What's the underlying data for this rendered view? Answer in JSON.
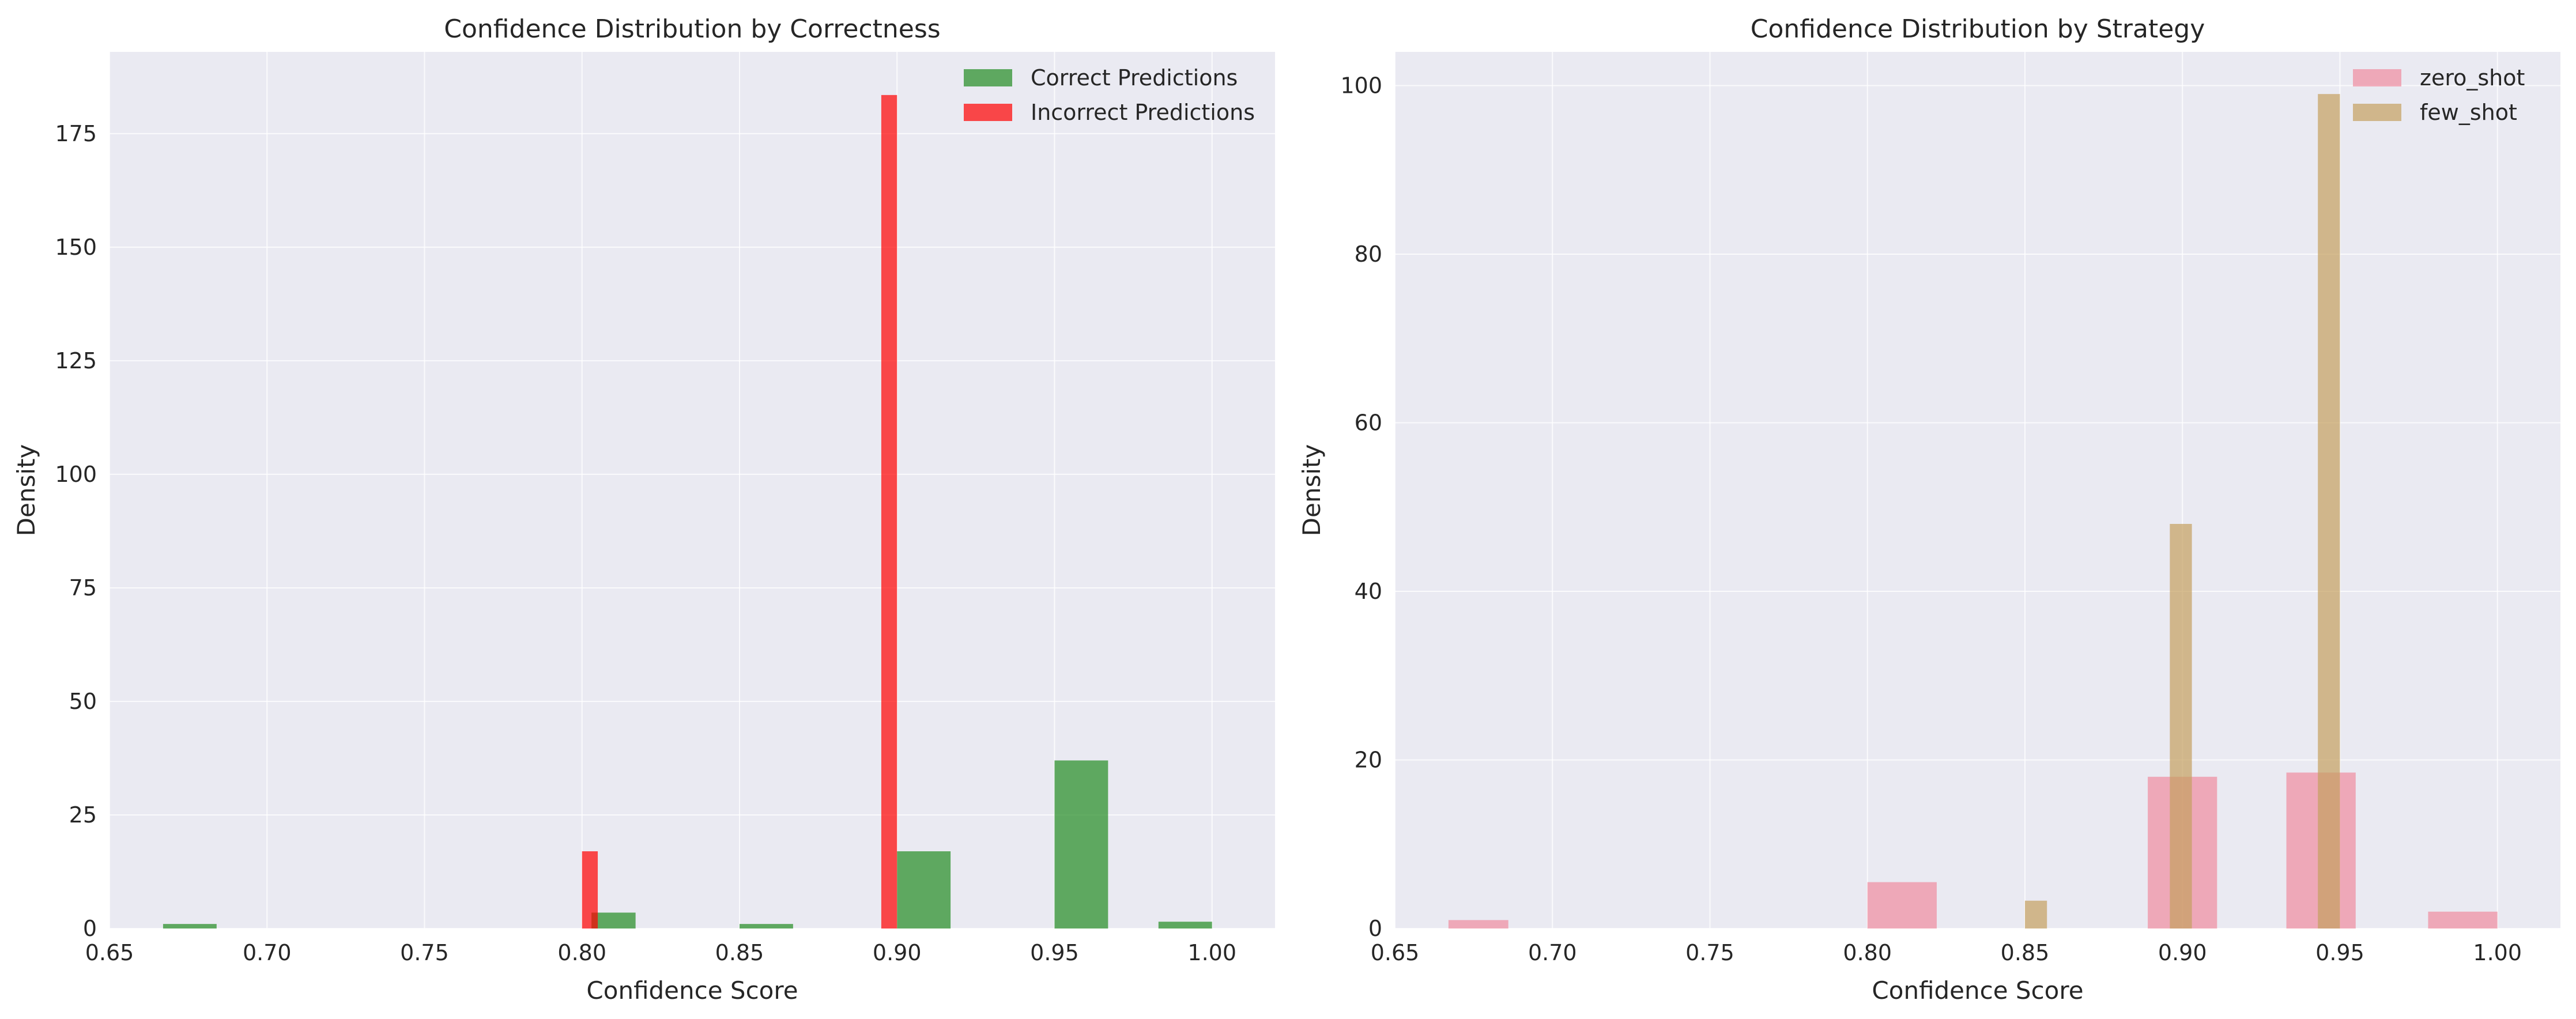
{
  "chart_data": [
    {
      "type": "bar",
      "title": "Confidence Distribution by Correctness",
      "xlabel": "Confidence Score",
      "ylabel": "Density",
      "xlim": [
        0.65,
        1.02
      ],
      "ylim": [
        0,
        193
      ],
      "xticks": [
        "0.65",
        "0.70",
        "0.75",
        "0.80",
        "0.85",
        "0.90",
        "0.95",
        "1.00"
      ],
      "yticks": [
        "0",
        "25",
        "50",
        "75",
        "100",
        "125",
        "150",
        "175"
      ],
      "grid": true,
      "legend_position": "top-right",
      "series": [
        {
          "name": "Correct Predictions",
          "color": "#228b22",
          "bins": [
            {
              "x0": 0.667,
              "x1": 0.684,
              "y": 1.0
            },
            {
              "x0": 0.803,
              "x1": 0.817,
              "y": 3.5
            },
            {
              "x0": 0.85,
              "x1": 0.867,
              "y": 1.0
            },
            {
              "x0": 0.9,
              "x1": 0.917,
              "y": 17.0
            },
            {
              "x0": 0.95,
              "x1": 0.967,
              "y": 37.0
            },
            {
              "x0": 0.983,
              "x1": 1.0,
              "y": 1.5
            }
          ]
        },
        {
          "name": "Incorrect Predictions",
          "color": "#ff0000",
          "bins": [
            {
              "x0": 0.8,
              "x1": 0.805,
              "y": 17.0
            },
            {
              "x0": 0.895,
              "x1": 0.9,
              "y": 183.5
            }
          ]
        }
      ]
    },
    {
      "type": "bar",
      "title": "Confidence Distribution by Strategy",
      "xlabel": "Confidence Score",
      "ylabel": "Density",
      "xlim": [
        0.65,
        1.02
      ],
      "ylim": [
        0,
        104
      ],
      "xticks": [
        "0.65",
        "0.70",
        "0.75",
        "0.80",
        "0.85",
        "0.90",
        "0.95",
        "1.00"
      ],
      "yticks": [
        "0",
        "20",
        "40",
        "60",
        "80",
        "100"
      ],
      "grid": true,
      "legend_position": "top-right",
      "series": [
        {
          "name": "zero_shot",
          "color": "#f08ca0",
          "bins": [
            {
              "x0": 0.667,
              "x1": 0.686,
              "y": 1.0
            },
            {
              "x0": 0.8,
              "x1": 0.822,
              "y": 5.5
            },
            {
              "x0": 0.889,
              "x1": 0.911,
              "y": 18.0
            },
            {
              "x0": 0.933,
              "x1": 0.955,
              "y": 18.5
            },
            {
              "x0": 0.978,
              "x1": 1.0,
              "y": 2.0
            }
          ]
        },
        {
          "name": "few_shot",
          "color": "#c4a060",
          "bins": [
            {
              "x0": 0.85,
              "x1": 0.857,
              "y": 3.3
            },
            {
              "x0": 0.896,
              "x1": 0.903,
              "y": 48.0
            },
            {
              "x0": 0.943,
              "x1": 0.95,
              "y": 99.0
            }
          ]
        }
      ]
    }
  ]
}
